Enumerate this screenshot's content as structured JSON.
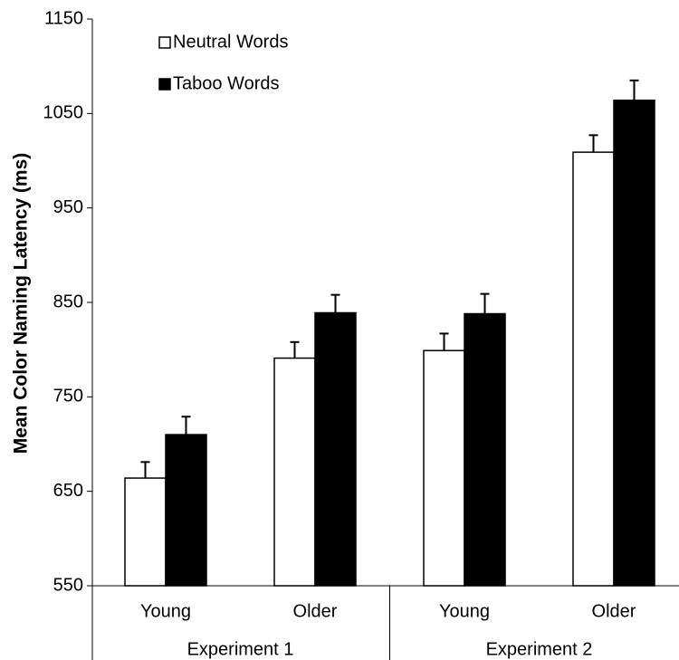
{
  "chart_data": {
    "type": "bar",
    "y_label": "Mean Color Naming Latency (ms)",
    "groups": [
      {
        "name": "Experiment 1",
        "categories": [
          "Young",
          "Older"
        ]
      },
      {
        "name": "Experiment 2",
        "categories": [
          "Young",
          "Older"
        ]
      }
    ],
    "series": [
      {
        "name": "Neutral Words",
        "color": "#ffffff",
        "values": [
          664,
          791,
          799,
          1009
        ],
        "errors": [
          17,
          17,
          18,
          18
        ]
      },
      {
        "name": "Taboo Words",
        "color": "#000000",
        "values": [
          710,
          839,
          838,
          1064
        ],
        "errors": [
          19,
          19,
          21,
          21
        ]
      }
    ],
    "ylim": [
      550,
      1150
    ],
    "yticks": [
      550,
      650,
      750,
      850,
      950,
      1050,
      1150
    ],
    "legend": "top-left"
  }
}
